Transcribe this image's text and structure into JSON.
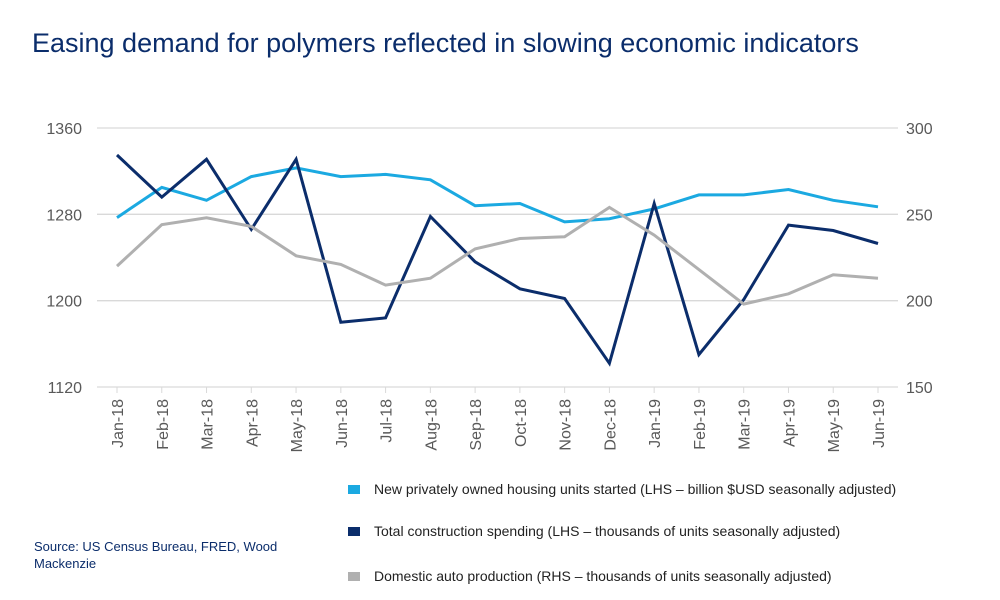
{
  "title": "Easing demand for polymers reflected in slowing economic indicators",
  "source": "Source: US Census Bureau, FRED, Wood Mackenzie",
  "chart_data": {
    "type": "line",
    "title": "Easing demand for polymers reflected in slowing economic indicators",
    "categories": [
      "Jan-18",
      "Feb-18",
      "Mar-18",
      "Apr-18",
      "May-18",
      "Jun-18",
      "Jul-18",
      "Aug-18",
      "Sep-18",
      "Oct-18",
      "Nov-18",
      "Dec-18",
      "Jan-19",
      "Feb-19",
      "Mar-19",
      "Apr-19",
      "May-19",
      "Jun-19"
    ],
    "y_left": {
      "range": [
        1120,
        1360
      ],
      "ticks": [
        "1120",
        "1200",
        "1280",
        "1360"
      ]
    },
    "y_right": {
      "range": [
        150,
        300
      ],
      "ticks": [
        "150",
        "200",
        "250",
        "300"
      ]
    },
    "grid": true,
    "legend_position": "bottom-right",
    "series": [
      {
        "name": "New privately owned housing units started (LHS – billion $USD seasonally adjusted)",
        "axis": "left",
        "color": "#1ba9e1",
        "values": [
          1277,
          1305,
          1293,
          1315,
          1323,
          1315,
          1317,
          1312,
          1288,
          1290,
          1273,
          1276,
          1285,
          1298,
          1298,
          1303,
          1293,
          1287
        ]
      },
      {
        "name": "Total construction spending (LHS – thousands of units seasonally adjusted)",
        "axis": "left",
        "color": "#0b2d6b",
        "values": [
          1335,
          1296,
          1331,
          1266,
          1331,
          1180,
          1184,
          1278,
          1236,
          1211,
          1202,
          1142,
          1290,
          1150,
          1201,
          1270,
          1265,
          1253
        ]
      },
      {
        "name": "Domestic auto production (RHS – thousands of units seasonally adjusted)",
        "axis": "right",
        "color": "#b0b0b0",
        "values": [
          220,
          244,
          248,
          243,
          226,
          221,
          209,
          213,
          230,
          236,
          237,
          254,
          238,
          218,
          198,
          204,
          215,
          213
        ]
      }
    ]
  }
}
